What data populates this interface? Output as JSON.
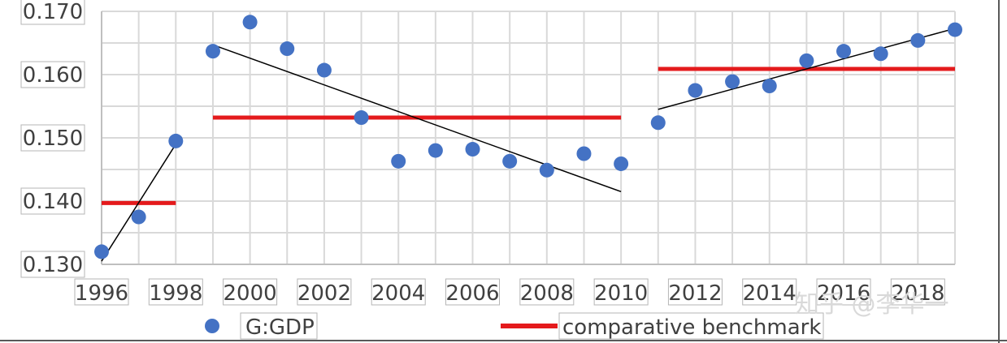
{
  "chart_data": {
    "type": "scatter",
    "title": "",
    "xlabel": "",
    "ylabel": "",
    "xlim": [
      1996,
      2019
    ],
    "ylim": [
      0.13,
      0.17
    ],
    "x_ticks": [
      "1996",
      "1998",
      "2000",
      "2002",
      "2004",
      "2006",
      "2008",
      "2010",
      "2012",
      "2014",
      "2016",
      "2018"
    ],
    "y_ticks": [
      "0.130",
      "0.140",
      "0.150",
      "0.160",
      "0.170"
    ],
    "grid": true,
    "legend_position": "bottom",
    "series": [
      {
        "name": "G:GDP",
        "type": "scatter",
        "color": "#4472c4",
        "x": [
          1996,
          1997,
          1998,
          1999,
          2000,
          2001,
          2002,
          2003,
          2004,
          2005,
          2006,
          2007,
          2008,
          2009,
          2010,
          2011,
          2012,
          2013,
          2014,
          2015,
          2016,
          2017,
          2018,
          2019
        ],
        "y": [
          0.132,
          0.1375,
          0.1495,
          0.1637,
          0.1683,
          0.1641,
          0.1607,
          0.1532,
          0.1463,
          0.148,
          0.1482,
          0.1463,
          0.1449,
          0.1475,
          0.1459,
          0.1524,
          0.1575,
          0.1589,
          0.1582,
          0.1622,
          0.1637,
          0.1633,
          0.1654,
          0.1671
        ]
      },
      {
        "name": "comparative benchmark",
        "type": "segments",
        "color": "#e41a1c",
        "segments": [
          {
            "x": [
              1996,
              1998
            ],
            "y": [
              0.1397,
              0.1397
            ]
          },
          {
            "x": [
              1999,
              2010
            ],
            "y": [
              0.1532,
              0.1532
            ]
          },
          {
            "x": [
              2011,
              2019
            ],
            "y": [
              0.1609,
              0.1609
            ]
          }
        ]
      }
    ],
    "trendlines": [
      {
        "color": "#000000",
        "x": [
          1996,
          1998
        ],
        "y": [
          0.1305,
          0.149
        ]
      },
      {
        "color": "#000000",
        "x": [
          1999,
          2010
        ],
        "y": [
          0.1647,
          0.1415
        ]
      },
      {
        "color": "#000000",
        "x": [
          2011,
          2019
        ],
        "y": [
          0.1545,
          0.1673
        ]
      }
    ]
  },
  "legend": {
    "scatter_label": "G:GDP",
    "line_label": "comparative benchmark"
  },
  "watermark": "知乎 @李华一"
}
